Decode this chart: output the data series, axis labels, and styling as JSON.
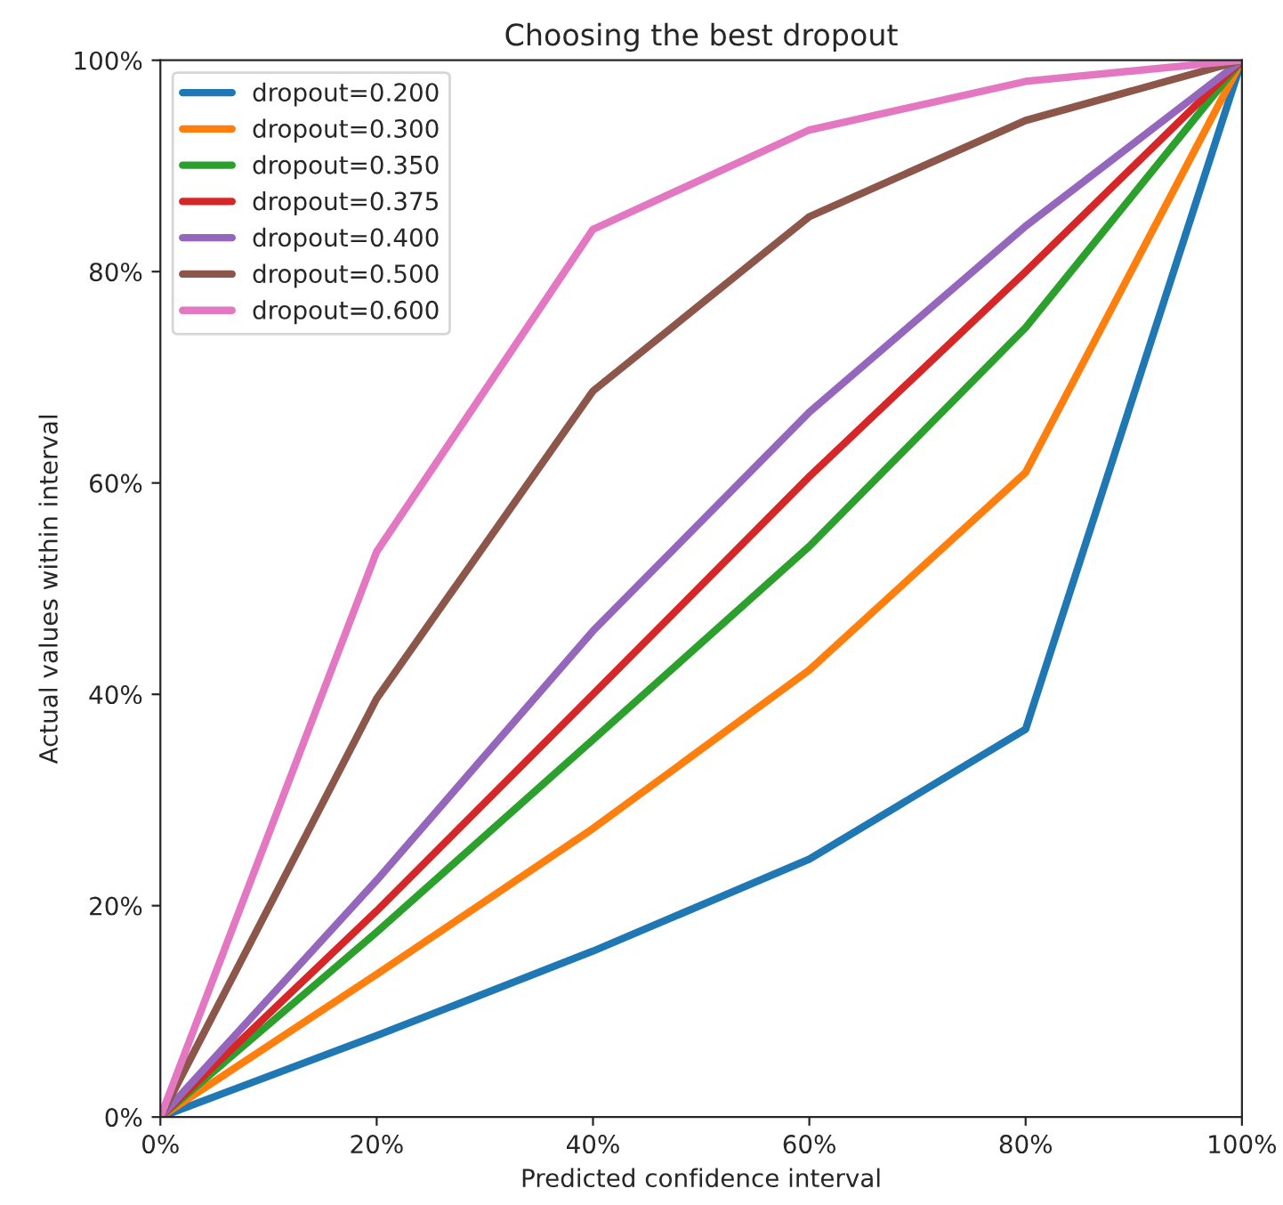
{
  "chart_data": {
    "type": "line",
    "title": "Choosing the best dropout",
    "xlabel": "Predicted confidence interval",
    "ylabel": "Actual values within interval",
    "x": [
      0,
      20,
      40,
      60,
      80,
      100
    ],
    "series": [
      {
        "name": "dropout=0.200",
        "color": "#1f77b4",
        "values": [
          0,
          7.7,
          15.7,
          24.4,
          36.7,
          100
        ]
      },
      {
        "name": "dropout=0.300",
        "color": "#ff7f0e",
        "values": [
          0,
          13.5,
          27.3,
          42.3,
          61,
          100
        ]
      },
      {
        "name": "dropout=0.350",
        "color": "#2ca02c",
        "values": [
          0,
          17.5,
          35.7,
          54,
          74.7,
          100
        ]
      },
      {
        "name": "dropout=0.375",
        "color": "#d62728",
        "values": [
          0,
          19.5,
          40,
          60.6,
          80,
          100
        ]
      },
      {
        "name": "dropout=0.400",
        "color": "#9467bd",
        "values": [
          0,
          22.4,
          46,
          66.7,
          84.3,
          100
        ]
      },
      {
        "name": "dropout=0.500",
        "color": "#8c564b",
        "values": [
          0,
          39.6,
          68.7,
          85.2,
          94.3,
          100
        ]
      },
      {
        "name": "dropout=0.600",
        "color": "#e377c2",
        "values": [
          0,
          53.5,
          84,
          93.4,
          98,
          100
        ]
      }
    ],
    "xlim": [
      0,
      100
    ],
    "ylim": [
      0,
      100
    ],
    "xticks": [
      {
        "value": 0,
        "label": "0%"
      },
      {
        "value": 20,
        "label": "20%"
      },
      {
        "value": 40,
        "label": "40%"
      },
      {
        "value": 60,
        "label": "60%"
      },
      {
        "value": 80,
        "label": "80%"
      },
      {
        "value": 100,
        "label": "100%"
      }
    ],
    "yticks": [
      {
        "value": 0,
        "label": "0%"
      },
      {
        "value": 20,
        "label": "20%"
      },
      {
        "value": 40,
        "label": "40%"
      },
      {
        "value": 60,
        "label": "60%"
      },
      {
        "value": 80,
        "label": "80%"
      },
      {
        "value": 100,
        "label": "100%"
      }
    ],
    "legend": "top left",
    "grid": false,
    "line_style": "solid",
    "marker": "none"
  }
}
